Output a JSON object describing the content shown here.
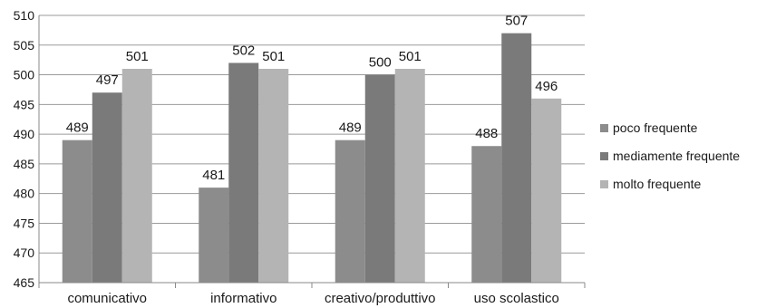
{
  "chart_data": {
    "type": "bar",
    "title": "",
    "xlabel": "",
    "ylabel": "",
    "categories": [
      "comunicativo",
      "informativo",
      "creativo/produttivo",
      "uso scolastico"
    ],
    "series": [
      {
        "name": "poco frequente",
        "values": [
          489,
          481,
          489,
          488
        ],
        "color": "#8c8c8c"
      },
      {
        "name": "mediamente frequente",
        "values": [
          497,
          502,
          500,
          507
        ],
        "color": "#7a7a7a"
      },
      {
        "name": "molto frequente",
        "values": [
          501,
          501,
          501,
          496
        ],
        "color": "#b4b4b4"
      }
    ],
    "ylim": [
      465,
      510
    ],
    "yticks": [
      465,
      470,
      475,
      480,
      485,
      490,
      495,
      500,
      505,
      510
    ],
    "grid": true,
    "legend_position": "right"
  }
}
